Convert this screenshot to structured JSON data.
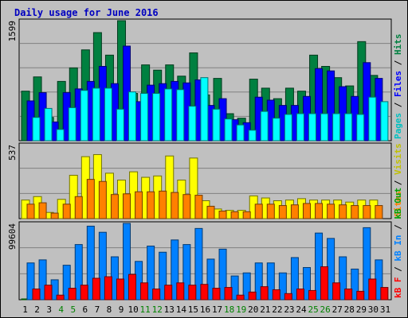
{
  "title": "Daily usage for June 2016",
  "chart_data": [
    {
      "type": "bar",
      "panel": "top",
      "y_max_label": "1599",
      "ylim": [
        0,
        1599
      ],
      "categories": [
        "1",
        "2",
        "3",
        "4",
        "5",
        "6",
        "7",
        "8",
        "9",
        "10",
        "11",
        "12",
        "13",
        "14",
        "15",
        "16",
        "17",
        "18",
        "19",
        "20",
        "21",
        "22",
        "23",
        "24",
        "25",
        "26",
        "27",
        "28",
        "29",
        "30",
        "31"
      ],
      "series": [
        {
          "name": "Hits",
          "color": "#008040",
          "values": [
            660,
            850,
            310,
            790,
            970,
            1210,
            1440,
            1140,
            1600,
            630,
            1010,
            940,
            1010,
            860,
            1170,
            610,
            830,
            360,
            300,
            820,
            700,
            560,
            700,
            660,
            1140,
            990,
            840,
            730,
            1320,
            870,
            0
          ]
        },
        {
          "name": "Files",
          "color": "#0000ff",
          "values": [
            530,
            640,
            250,
            640,
            690,
            790,
            990,
            760,
            1260,
            520,
            740,
            760,
            790,
            770,
            810,
            470,
            560,
            280,
            240,
            580,
            540,
            470,
            470,
            590,
            960,
            930,
            720,
            590,
            1040,
            830,
            0
          ]
        },
        {
          "name": "Pages",
          "color": "#00ffff",
          "values": [
            310,
            430,
            150,
            440,
            670,
            700,
            700,
            420,
            650,
            630,
            630,
            690,
            680,
            460,
            840,
            420,
            290,
            210,
            140,
            390,
            300,
            350,
            360,
            360,
            360,
            360,
            360,
            350,
            580,
            520,
            0
          ]
        }
      ]
    },
    {
      "type": "bar",
      "panel": "middle",
      "y_max_label": "537",
      "ylim": [
        0,
        537
      ],
      "categories": [
        "1",
        "2",
        "3",
        "4",
        "5",
        "6",
        "7",
        "8",
        "9",
        "10",
        "11",
        "12",
        "13",
        "14",
        "15",
        "16",
        "17",
        "18",
        "19",
        "20",
        "21",
        "22",
        "23",
        "24",
        "25",
        "26",
        "27",
        "28",
        "29",
        "30",
        "31"
      ],
      "series": [
        {
          "name": "Visits",
          "color": "#ffff00",
          "values": [
            135,
            160,
            45,
            140,
            315,
            450,
            465,
            330,
            280,
            340,
            300,
            310,
            455,
            280,
            440,
            130,
            70,
            60,
            60,
            165,
            150,
            130,
            135,
            145,
            135,
            135,
            135,
            120,
            135,
            135,
            0
          ]
        },
        {
          "name": "Sites",
          "color": "#ff8000",
          "values": [
            105,
            115,
            40,
            105,
            160,
            285,
            270,
            175,
            180,
            195,
            195,
            200,
            190,
            175,
            170,
            90,
            55,
            50,
            50,
            105,
            105,
            95,
            100,
            110,
            110,
            105,
            100,
            95,
            95,
            95,
            0
          ]
        }
      ]
    },
    {
      "type": "bar",
      "panel": "bottom",
      "y_max_label": "99604",
      "ylim": [
        0,
        99604
      ],
      "categories": [
        "1",
        "2",
        "3",
        "4",
        "5",
        "6",
        "7",
        "8",
        "9",
        "10",
        "11",
        "12",
        "13",
        "14",
        "15",
        "16",
        "17",
        "18",
        "19",
        "20",
        "21",
        "22",
        "23",
        "24",
        "25",
        "26",
        "27",
        "28",
        "29",
        "30",
        "31"
      ],
      "series": [
        {
          "name": "KBytes In",
          "color": "#00c000",
          "values": [
            400,
            400,
            400,
            400,
            400,
            400,
            400,
            400,
            2000,
            400,
            400,
            400,
            400,
            400,
            400,
            400,
            400,
            400,
            400,
            400,
            400,
            400,
            400,
            400,
            400,
            400,
            400,
            400,
            400,
            400,
            0
          ]
        },
        {
          "name": "KBytes Out",
          "color": "#0080ff",
          "values": [
            48000,
            52000,
            26000,
            45000,
            72000,
            96000,
            88000,
            56000,
            101000,
            50000,
            70000,
            62000,
            78000,
            72000,
            93000,
            53000,
            66000,
            31000,
            35000,
            48000,
            48000,
            35000,
            55000,
            42000,
            87000,
            80000,
            56000,
            40000,
            94000,
            52000,
            0
          ]
        },
        {
          "name": "KBytes F",
          "color": "#ff0000",
          "values": [
            14000,
            19000,
            6000,
            15000,
            19000,
            28000,
            30000,
            27000,
            33000,
            22000,
            14000,
            19000,
            22000,
            19000,
            20000,
            15000,
            16000,
            6000,
            10000,
            17000,
            13000,
            8000,
            14000,
            12000,
            43000,
            22000,
            14000,
            11000,
            27000,
            16000,
            0
          ]
        }
      ]
    }
  ],
  "legends": {
    "top": [
      {
        "text": "Pages",
        "color": "#00c0c0"
      },
      {
        "text": " / ",
        "color": "#000000"
      },
      {
        "text": "Files",
        "color": "#0000ff"
      },
      {
        "text": " / ",
        "color": "#000000"
      },
      {
        "text": "Hits",
        "color": "#008040"
      }
    ],
    "middle": [
      {
        "text": "Sites",
        "color": "#ff8000"
      },
      {
        "text": " / ",
        "color": "#000000"
      },
      {
        "text": "Visits",
        "color": "#c0c000"
      }
    ],
    "bottom": [
      {
        "text": "kB F",
        "color": "#ff0000"
      },
      {
        "text": " / ",
        "color": "#000000"
      },
      {
        "text": "kB In",
        "color": "#0080ff"
      },
      {
        "text": " / ",
        "color": "#000000"
      },
      {
        "text": "kB Out",
        "color": "#00a000"
      }
    ]
  },
  "weekend_days": [
    "4",
    "5",
    "11",
    "12",
    "18",
    "19",
    "25",
    "26"
  ],
  "weekend_color": "#008000",
  "weekday_color": "#000000"
}
